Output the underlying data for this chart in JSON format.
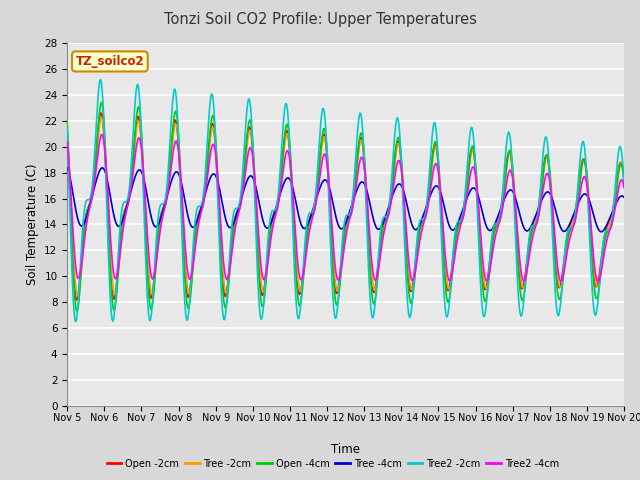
{
  "title": "Tonzi Soil CO2 Profile: Upper Temperatures",
  "xlabel": "Time",
  "ylabel": "Soil Temperature (C)",
  "ylim": [
    0,
    28
  ],
  "yticks": [
    0,
    2,
    4,
    6,
    8,
    10,
    12,
    14,
    16,
    18,
    20,
    22,
    24,
    26,
    28
  ],
  "xtick_labels": [
    "Nov 5",
    "Nov 6",
    "Nov 7",
    "Nov 8",
    "Nov 9",
    "Nov 10",
    "Nov 11",
    "Nov 12",
    "Nov 13",
    "Nov 14",
    "Nov 15",
    "Nov 16",
    "Nov 17",
    "Nov 18",
    "Nov 19",
    "Nov 20"
  ],
  "series": [
    {
      "label": "Open -2cm",
      "color": "#ff0000",
      "lw": 1.2
    },
    {
      "label": "Tree -2cm",
      "color": "#ff9900",
      "lw": 1.2
    },
    {
      "label": "Open -4cm",
      "color": "#00cc00",
      "lw": 1.2
    },
    {
      "label": "Tree -4cm",
      "color": "#0000cc",
      "lw": 1.2
    },
    {
      "label": "Tree2 -2cm",
      "color": "#00cccc",
      "lw": 1.2
    },
    {
      "label": "Tree2 -4cm",
      "color": "#ff00ff",
      "lw": 1.2
    }
  ],
  "bg_color": "#d8d8d8",
  "plot_bg_color": "#e8e8e8",
  "grid_color": "#ffffff",
  "annotation_text": "TZ_soilco2",
  "annotation_bg": "#ffffcc",
  "annotation_border": "#cc8800"
}
